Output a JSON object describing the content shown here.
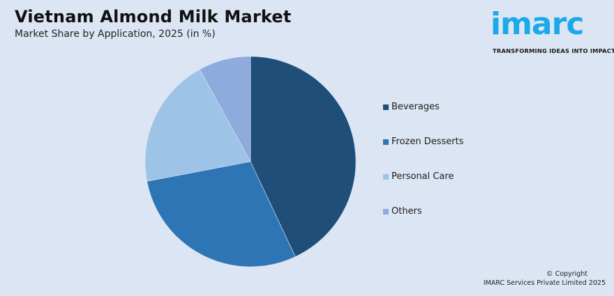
{
  "header": {
    "title": "Vietnam Almond Milk Market",
    "subtitle": "Market Share by Application, 2025 (in %)"
  },
  "logo": {
    "brand": "imarc",
    "tagline": "TRANSFORMING IDEAS INTO IMPACT",
    "color": "#1ba9ec"
  },
  "legend": {
    "items": [
      {
        "label": "Beverages",
        "color": "#1f4e79"
      },
      {
        "label": "Frozen Desserts",
        "color": "#2e75b6"
      },
      {
        "label": "Personal Care",
        "color": "#9dc3e6"
      },
      {
        "label": "Others",
        "color": "#8faadc"
      }
    ]
  },
  "footer": {
    "copyright_line1": "© Copyright",
    "copyright_line2": "IMARC Services Private Limited 2025"
  },
  "chart_data": {
    "type": "pie",
    "title": "Vietnam Almond Milk Market",
    "subtitle": "Market Share by Application, 2025 (in %)",
    "categories": [
      "Beverages",
      "Frozen Desserts",
      "Personal Care",
      "Others"
    ],
    "values": [
      43,
      29,
      20,
      8
    ],
    "colors": [
      "#1f4e79",
      "#2e75b6",
      "#9dc3e6",
      "#8faadc"
    ],
    "start_angle": "12 o'clock, clockwise",
    "legend_position": "right",
    "data_labels": false
  }
}
